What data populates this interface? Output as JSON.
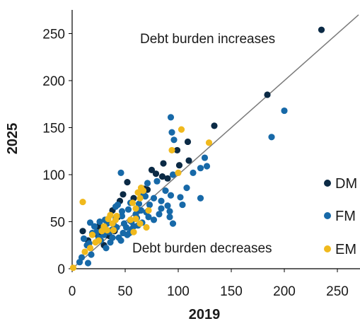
{
  "chart_data": {
    "type": "scatter",
    "title": "",
    "xlabel": "2019",
    "ylabel": "2025",
    "xlim": [
      0,
      270
    ],
    "ylim": [
      0,
      275
    ],
    "x_ticks": [
      0,
      50,
      100,
      150,
      200,
      250
    ],
    "y_ticks": [
      0,
      50,
      100,
      150,
      200,
      250
    ],
    "grid": false,
    "legend_placement": "right",
    "reference_line": "y = x",
    "annotations": {
      "upper": "Debt burden increases",
      "lower": "Debt burden decreases"
    },
    "series": [
      {
        "name": "DM",
        "color": "#0b2a45",
        "points": [
          [
            235,
            254
          ],
          [
            184,
            185
          ],
          [
            134,
            152
          ],
          [
            109,
            135
          ],
          [
            99,
            126
          ],
          [
            110,
            115
          ],
          [
            86,
            112
          ],
          [
            101,
            110
          ],
          [
            75,
            105
          ],
          [
            85,
            98
          ],
          [
            79,
            101
          ],
          [
            52,
            92
          ],
          [
            48,
            79
          ],
          [
            38,
            62
          ],
          [
            43,
            55
          ],
          [
            45,
            72
          ],
          [
            58,
            75
          ],
          [
            68,
            85
          ],
          [
            10,
            40
          ],
          [
            33,
            36
          ],
          [
            15,
            30
          ],
          [
            30,
            25
          ],
          [
            25,
            45
          ],
          [
            40,
            40
          ],
          [
            35,
            35
          ],
          [
            24,
            36
          ],
          [
            55,
            51
          ],
          [
            64,
            62
          ],
          [
            71,
            84
          ],
          [
            90,
            96
          ]
        ]
      },
      {
        "name": "FM",
        "color": "#1769a8",
        "points": [
          [
            200,
            168
          ],
          [
            188,
            140
          ],
          [
            93,
            161
          ],
          [
            94,
            145
          ],
          [
            96,
            137
          ],
          [
            125,
            118
          ],
          [
            121,
            107
          ],
          [
            127,
            109
          ],
          [
            114,
            102
          ],
          [
            80,
            93
          ],
          [
            95,
            100
          ],
          [
            88,
            83
          ],
          [
            93,
            78
          ],
          [
            102,
            76
          ],
          [
            108,
            86
          ],
          [
            121,
            75
          ],
          [
            104,
            68
          ],
          [
            90,
            67
          ],
          [
            84,
            64
          ],
          [
            82,
            58
          ],
          [
            92,
            55
          ],
          [
            77,
            52
          ],
          [
            95,
            48
          ],
          [
            69,
            77
          ],
          [
            73,
            68
          ],
          [
            65,
            62
          ],
          [
            70,
            60
          ],
          [
            72,
            55
          ],
          [
            66,
            49
          ],
          [
            60,
            58
          ],
          [
            61,
            54
          ],
          [
            56,
            50
          ],
          [
            56,
            42
          ],
          [
            54,
            38
          ],
          [
            52,
            36
          ],
          [
            49,
            48
          ],
          [
            51,
            44
          ],
          [
            47,
            56
          ],
          [
            47,
            61
          ],
          [
            43,
            68
          ],
          [
            41,
            53
          ],
          [
            41,
            66
          ],
          [
            39,
            47
          ],
          [
            42,
            44
          ],
          [
            37,
            41
          ],
          [
            35,
            39
          ],
          [
            33,
            48
          ],
          [
            31,
            52
          ],
          [
            30,
            36
          ],
          [
            29,
            42
          ],
          [
            27,
            30
          ],
          [
            25,
            33
          ],
          [
            23,
            39
          ],
          [
            21,
            45
          ],
          [
            19,
            38
          ],
          [
            17,
            49
          ],
          [
            16,
            27
          ],
          [
            14,
            25
          ],
          [
            11,
            32
          ],
          [
            9,
            12
          ],
          [
            7,
            7
          ],
          [
            15,
            6
          ],
          [
            18,
            15
          ],
          [
            44,
            33
          ],
          [
            46,
            30
          ],
          [
            48,
            38
          ],
          [
            36,
            28
          ],
          [
            38,
            33
          ],
          [
            32,
            22
          ],
          [
            58,
            45
          ],
          [
            62,
            46
          ],
          [
            46,
            102
          ],
          [
            67,
            80
          ],
          [
            71,
            91
          ],
          [
            77,
            75
          ],
          [
            84,
            72
          ],
          [
            92,
            61
          ],
          [
            26,
            50
          ],
          [
            53,
            63
          ],
          [
            63,
            69
          ],
          [
            55,
            70
          ]
        ]
      },
      {
        "name": "EM",
        "color": "#f0b91d",
        "points": [
          [
            103,
            148
          ],
          [
            94,
            126
          ],
          [
            129,
            134
          ],
          [
            100,
            102
          ],
          [
            10,
            71
          ],
          [
            67,
            83
          ],
          [
            62,
            81
          ],
          [
            65,
            86
          ],
          [
            64,
            75
          ],
          [
            57,
            70
          ],
          [
            60,
            64
          ],
          [
            72,
            62
          ],
          [
            60,
            53
          ],
          [
            55,
            52
          ],
          [
            64,
            48
          ],
          [
            70,
            44
          ],
          [
            58,
            39
          ],
          [
            42,
            56
          ],
          [
            36,
            57
          ],
          [
            34,
            53
          ],
          [
            38,
            48
          ],
          [
            39,
            41
          ],
          [
            33,
            41
          ],
          [
            30,
            45
          ],
          [
            28,
            40
          ],
          [
            25,
            30
          ],
          [
            22,
            28
          ],
          [
            19,
            36
          ],
          [
            17,
            22
          ],
          [
            12,
            18
          ],
          [
            1,
            1
          ],
          [
            41,
            52
          ]
        ]
      }
    ]
  }
}
